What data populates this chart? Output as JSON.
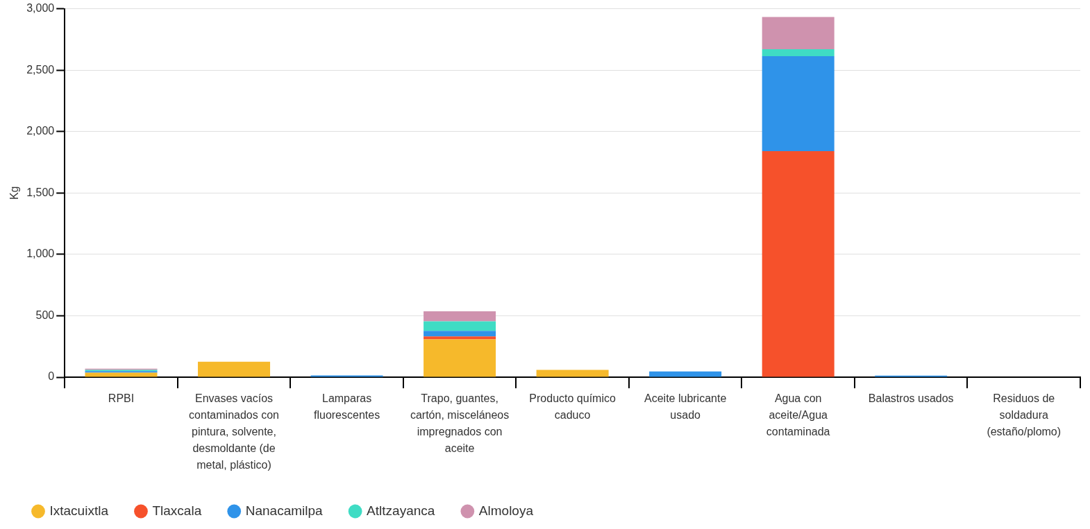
{
  "chart_data": {
    "type": "bar",
    "stacked": true,
    "ylabel": "Kg",
    "categories": [
      "RPBI",
      "Envases vacíos contaminados con pintura, solvente, desmoldante (de metal, plástico)",
      "Lamparas fluorescentes",
      "Trapo, guantes, cartón, misceláneos impregnados con aceite",
      "Producto químico caduco",
      "Aceite lubricante usado",
      "Agua con aceite/Agua contaminada",
      "Balastros usados",
      "Residuos de soldadura (estaño/plomo)"
    ],
    "series": [
      {
        "name": "Ixtacuixtla",
        "color": "#f6b92b",
        "values": [
          37,
          125,
          0,
          308,
          59,
          0,
          0,
          0,
          0
        ]
      },
      {
        "name": "Tlaxcala",
        "color": "#f6512b",
        "values": [
          0,
          0,
          0,
          23,
          0,
          0,
          1841,
          0,
          0
        ]
      },
      {
        "name": "Nanacamilpa",
        "color": "#2f93e9",
        "values": [
          12,
          0,
          14,
          46,
          0,
          46,
          773,
          12,
          0
        ]
      },
      {
        "name": "Atltzayanca",
        "color": "#3fdcc4",
        "values": [
          10,
          0,
          0,
          78,
          0,
          0,
          57,
          0,
          0
        ]
      },
      {
        "name": "Almoloya",
        "color": "#cf92ae",
        "values": [
          10,
          0,
          0,
          81,
          0,
          0,
          262,
          0,
          0
        ]
      }
    ],
    "ylim": [
      0,
      3000
    ],
    "yticks": [
      {
        "value": 0,
        "label": "0"
      },
      {
        "value": 500,
        "label": "500"
      },
      {
        "value": 1000,
        "label": "1,000"
      },
      {
        "value": 1500,
        "label": "1,500"
      },
      {
        "value": 2000,
        "label": "2,000"
      },
      {
        "value": 2500,
        "label": "2,500"
      },
      {
        "value": 3000,
        "label": "3,000"
      }
    ],
    "grid": "y",
    "legend": "bottom left"
  }
}
